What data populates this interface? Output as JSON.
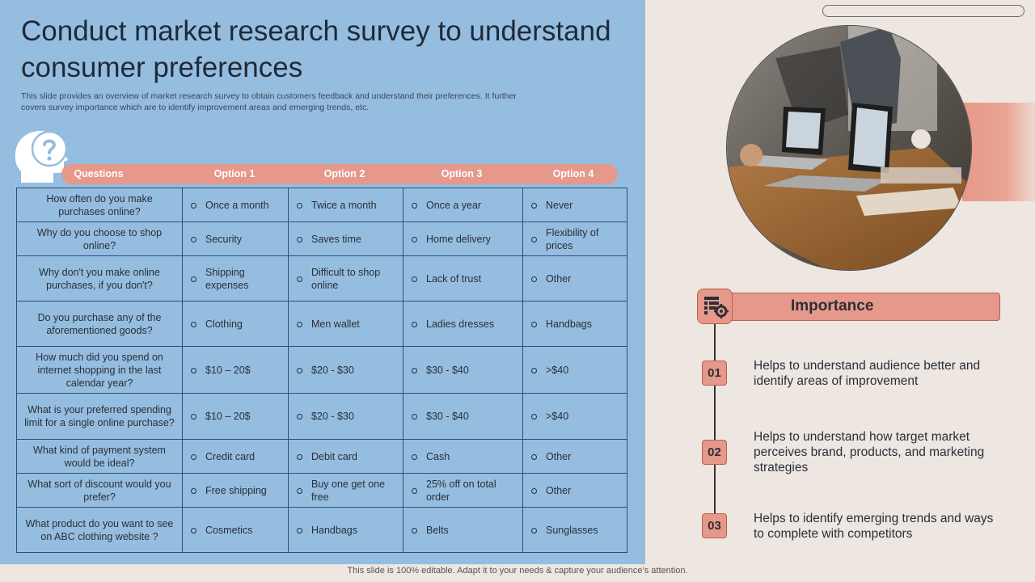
{
  "title": "Conduct market research survey to understand consumer preferences",
  "subtitle": "This slide provides an overview of market research survey to obtain customers feedback and understand their preferences. It further covers survey importance which are to identify improvement areas and emerging trends, etc.",
  "table": {
    "headers": [
      "Questions",
      "Option 1",
      "Option 2",
      "Option 3",
      "Option 4"
    ],
    "rows": [
      {
        "q": "How often do you make purchases online?",
        "o": [
          "Once a month",
          "Twice a month",
          "Once a year",
          "Never"
        ]
      },
      {
        "q": "Why do you choose to shop online?",
        "o": [
          "Security",
          "Saves time",
          "Home delivery",
          "Flexibility of prices"
        ]
      },
      {
        "q": "Why don't you make online purchases, if you don't?",
        "o": [
          "Shipping expenses",
          "Difficult to shop online",
          "Lack of trust",
          "Other"
        ]
      },
      {
        "q": "Do you purchase any of the aforementioned  goods?",
        "o": [
          "Clothing",
          "Men wallet",
          "Ladies dresses",
          "Handbags"
        ]
      },
      {
        "q": "How much did you spend on internet shopping in the last calendar year?",
        "o": [
          "$10 – 20$",
          "$20 - $30",
          "$30 - $40",
          ">$40"
        ]
      },
      {
        "q": "What is your preferred spending limit for a single online purchase?",
        "o": [
          "$10 – 20$",
          "$20 - $30",
          "$30 - $40",
          ">$40"
        ]
      },
      {
        "q": "What kind of payment system would be ideal?",
        "o": [
          "Credit card",
          "Debit card",
          "Cash",
          "Other"
        ]
      },
      {
        "q": "What sort of discount would you prefer?",
        "o": [
          "Free shipping",
          "Buy one get one free",
          "25% off on total order",
          "Other"
        ]
      },
      {
        "q": "What product do you want to see on ABC clothing website ?",
        "o": [
          "Cosmetics",
          "Handbags",
          "Belts",
          "Sunglasses"
        ]
      }
    ]
  },
  "importance": {
    "title": "Importance",
    "items": [
      {
        "num": "01",
        "text": "Helps to understand audience better and identify areas of improvement"
      },
      {
        "num": "02",
        "text": "Helps to understand how target market perceives brand, products, and marketing strategies"
      },
      {
        "num": "03",
        "text": "Helps to identify emerging trends and ways to complete with competitors"
      }
    ]
  },
  "footer": "This slide is 100% editable. Adapt it to your needs & capture your audience’s attention.",
  "colors": {
    "panel": "#95bde0",
    "accent": "#e6988a",
    "background": "#ede6e1",
    "border": "#2d4f78"
  },
  "icons": {
    "head": "head-question-icon",
    "importance": "survey-settings-icon",
    "photo": "meeting-laptops-photo"
  }
}
